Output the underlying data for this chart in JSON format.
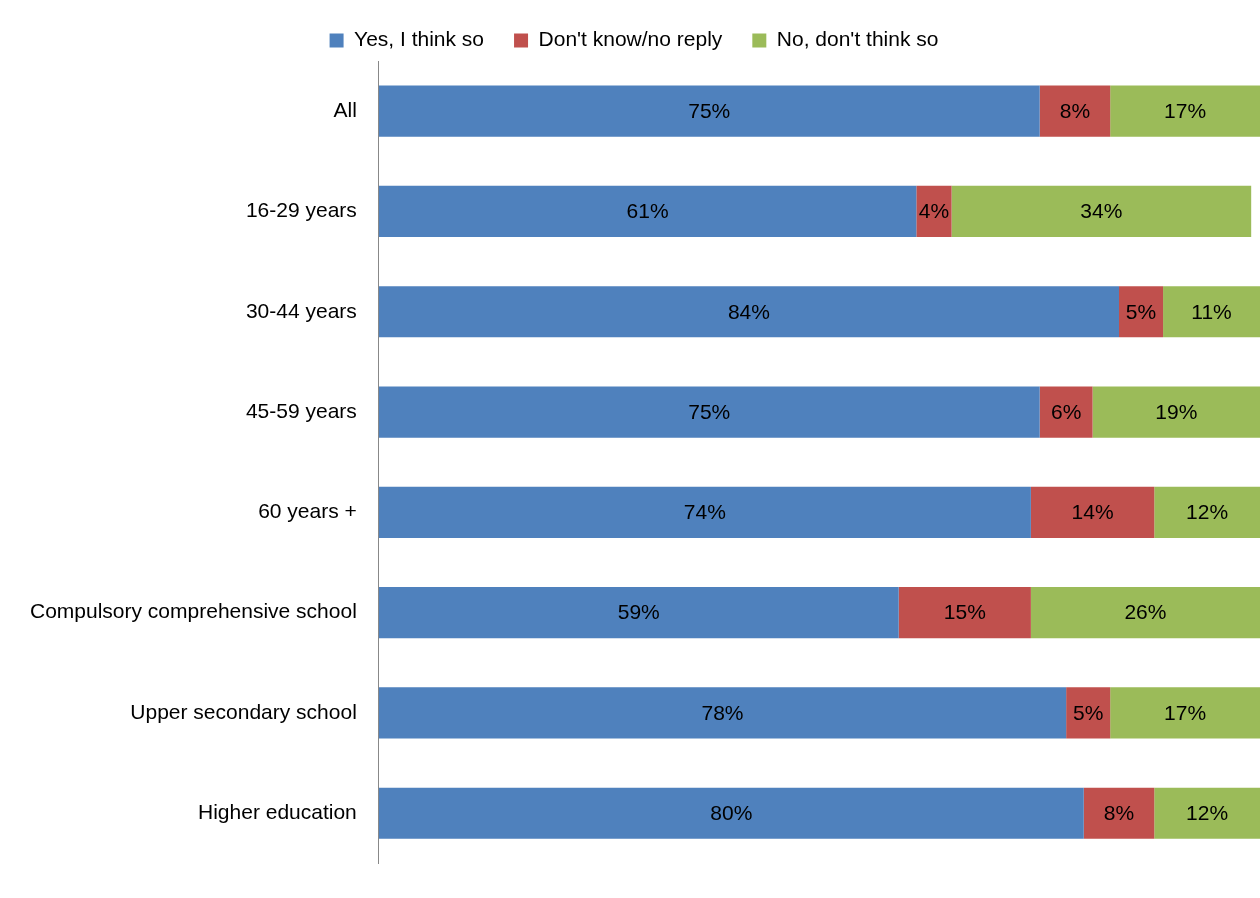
{
  "chart_data": {
    "type": "bar",
    "orientation": "horizontal",
    "stacked": true,
    "categories": [
      "All",
      "16-29 years",
      "30-44 years",
      "45-59 years",
      "60 years +",
      "Compulsory comprehensive school",
      "Upper secondary school",
      "Higher education"
    ],
    "series": [
      {
        "name": "Yes, I think so",
        "color": "#4f81bd",
        "values": [
          75,
          61,
          84,
          75,
          74,
          59,
          78,
          80
        ],
        "value_labels": [
          "75%",
          "61%",
          "84%",
          "75%",
          "74%",
          "59%",
          "78%",
          "80%"
        ]
      },
      {
        "name": "Don't know/no reply",
        "color": "#c0504d",
        "values": [
          8,
          4,
          5,
          6,
          14,
          15,
          5,
          8
        ],
        "value_labels": [
          "8%",
          "4%",
          "5%",
          "6%",
          "14%",
          "15%",
          "5%",
          "8%"
        ]
      },
      {
        "name": "No, don't think so",
        "color": "#9bbb59",
        "values": [
          17,
          34,
          11,
          19,
          12,
          26,
          17,
          12
        ],
        "value_labels": [
          "17%",
          "34%",
          "11%",
          "19%",
          "12%",
          "26%",
          "17%",
          "12%"
        ]
      }
    ],
    "xlim": [
      0,
      100
    ],
    "tick_labels": "y",
    "legend": "top"
  }
}
